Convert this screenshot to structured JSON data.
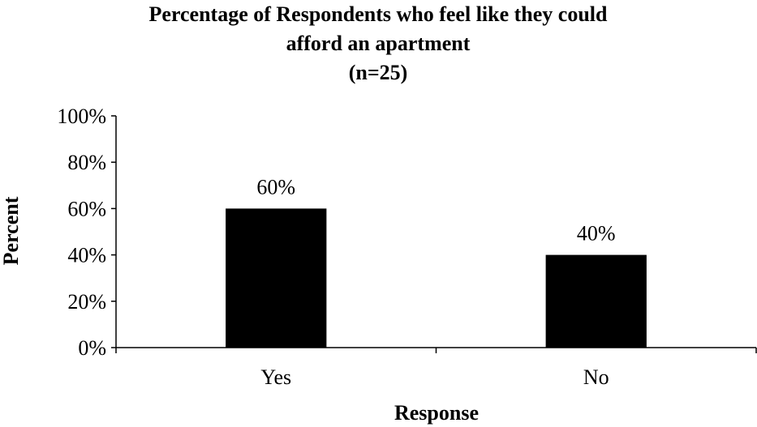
{
  "chart_data": {
    "type": "bar",
    "title_lines": [
      "Percentage of Respondents who feel like they could",
      "afford an apartment",
      "(n=25)"
    ],
    "xlabel": "Response",
    "ylabel": "Percent",
    "categories": [
      "Yes",
      "No"
    ],
    "values": [
      60,
      40
    ],
    "data_labels": [
      "60%",
      "40%"
    ],
    "ylim": [
      0,
      100
    ],
    "yticks": [
      0,
      20,
      40,
      60,
      80,
      100
    ],
    "ytick_labels": [
      "0%",
      "20%",
      "40%",
      "60%",
      "80%",
      "100%"
    ],
    "bar_color": "#000000",
    "grid": false,
    "legend": "none"
  }
}
